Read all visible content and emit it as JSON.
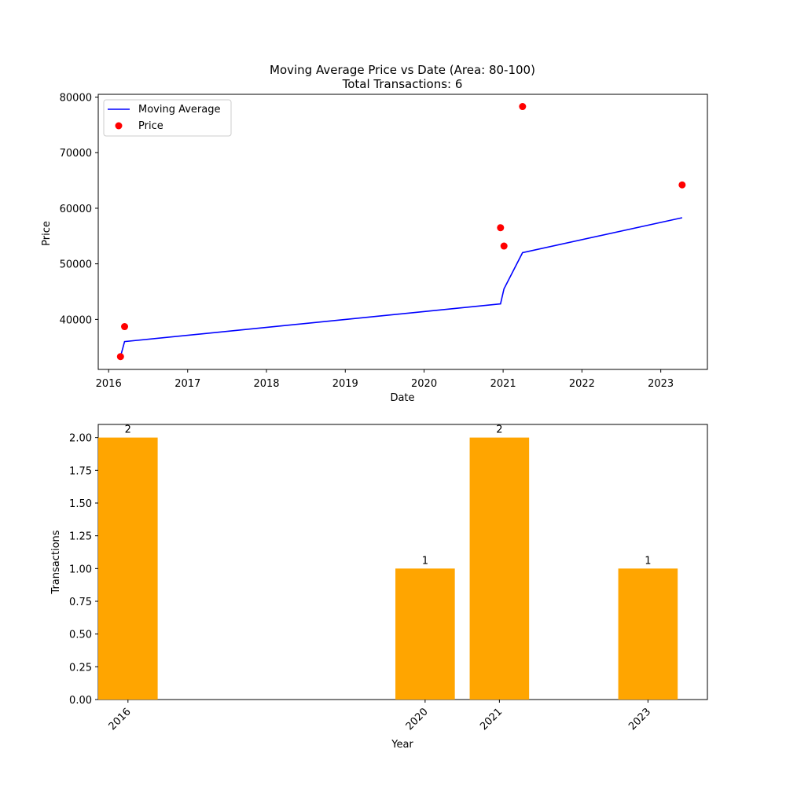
{
  "chart_data": [
    {
      "type": "line",
      "title": "Moving Average Price vs Date (Area: 80-100)",
      "subtitle": "Total Transactions: 6",
      "xlabel": "Date",
      "ylabel": "Price",
      "xlim": [
        "2015-11-14",
        "2023-08-05"
      ],
      "ylim": [
        31000,
        80500
      ],
      "x_ticks": [
        "2016",
        "2017",
        "2018",
        "2019",
        "2020",
        "2021",
        "2022",
        "2023"
      ],
      "y_ticks": [
        40000,
        50000,
        60000,
        70000,
        80000
      ],
      "legend_position": "top-left",
      "series": [
        {
          "name": "Moving Average",
          "type": "line",
          "color": "#0000ff",
          "points": [
            {
              "x": "2016-02-25",
              "y": 33300
            },
            {
              "x": "2016-03-15",
              "y": 36000
            },
            {
              "x": "2020-12-20",
              "y": 42800
            },
            {
              "x": "2021-01-05",
              "y": 45500
            },
            {
              "x": "2021-04-01",
              "y": 52000
            },
            {
              "x": "2023-04-10",
              "y": 58300
            }
          ]
        },
        {
          "name": "Price",
          "type": "scatter",
          "color": "#ff0000",
          "points": [
            {
              "x": "2016-02-25",
              "y": 33300
            },
            {
              "x": "2016-03-15",
              "y": 38700
            },
            {
              "x": "2020-12-20",
              "y": 56500
            },
            {
              "x": "2021-01-05",
              "y": 53200
            },
            {
              "x": "2021-04-01",
              "y": 78300
            },
            {
              "x": "2023-04-10",
              "y": 64200
            }
          ]
        }
      ]
    },
    {
      "type": "bar",
      "title": "",
      "xlabel": "Year",
      "ylabel": "Transactions",
      "categories": [
        "2016",
        "2020",
        "2021",
        "2023"
      ],
      "values": [
        2,
        1,
        2,
        1
      ],
      "data_labels": [
        "2",
        "1",
        "2",
        "1"
      ],
      "y_ticks": [
        "0.00",
        "0.25",
        "0.50",
        "0.75",
        "1.00",
        "1.25",
        "1.50",
        "1.75",
        "2.00"
      ],
      "ylim": [
        0,
        2.1
      ],
      "xlim": [
        2015.6,
        2023.8
      ],
      "bar_width": 0.8,
      "color": "#ffa500"
    }
  ]
}
